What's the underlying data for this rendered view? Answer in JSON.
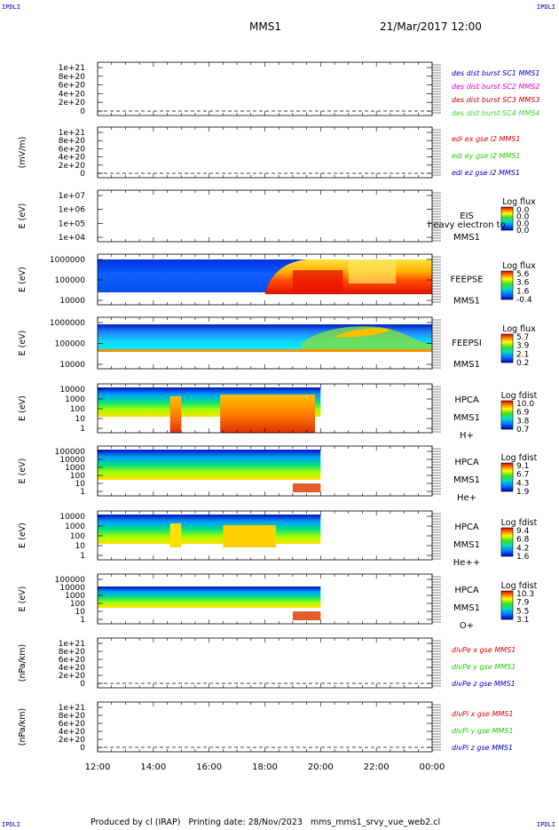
{
  "corner_marks": {
    "tl": "IPDLI",
    "tr": "IPDLI",
    "bl": "IPDLI",
    "br": "IPDLI"
  },
  "header": {
    "title": "MMS1",
    "datetime": "21/Mar/2017 12:00"
  },
  "footer": {
    "text": "Produced by cl (IRAP)   Printing date: 28/Nov/2023   mms_mms1_srvy_vue_web2.cl"
  },
  "colors": {
    "red": "#dd0000",
    "green": "#22cc00",
    "blue": "#0000cc",
    "magenta": "#dd00dd",
    "dark_red": "#cc0000",
    "light_green": "#33dd33"
  },
  "chart_data": {
    "type": "heatmap",
    "x_axis": {
      "ticks": [
        "12:00",
        "14:00",
        "16:00",
        "18:00",
        "20:00",
        "22:00",
        "00:00"
      ],
      "start_hours": 12,
      "end_hours": 24
    },
    "panels": [
      {
        "id": "p1",
        "kind": "line",
        "ylabel": "",
        "yticks": [
          "1e+21",
          "8e+20",
          "6e+20",
          "4e+20",
          "2e+20",
          "0"
        ],
        "legend": [
          {
            "text": "des dist burst SC1 MMS1",
            "color": "#0000cc"
          },
          {
            "text": "des dist burst SC2 MMS2",
            "color": "#dd00dd"
          },
          {
            "text": "des dist burst SC3 MMS3",
            "color": "#cc0000"
          },
          {
            "text": "des dist burst SC4 MMS4",
            "color": "#33dd33"
          }
        ]
      },
      {
        "id": "p2",
        "kind": "line",
        "ylabel": "(mV/m)",
        "yticks": [
          "1e+21",
          "8e+20",
          "6e+20",
          "4e+20",
          "2e+20",
          "0"
        ],
        "legend": [
          {
            "text": "edi ex gse l2 MMS1",
            "color": "#dd0000"
          },
          {
            "text": "edi ey gse l2 MMS1",
            "color": "#22cc00"
          },
          {
            "text": "edi ez gse l2 MMS1",
            "color": "#0000cc"
          }
        ]
      },
      {
        "id": "p3",
        "kind": "spec",
        "ylabel": "E (eV)",
        "yticks": [
          "1e+07",
          "1e+06",
          "1e+05",
          "1e+04"
        ],
        "labels": [
          "EIS",
          "MMS1"
        ],
        "overlay": "heavy electron to",
        "cbar_title": "Log flux",
        "cbar_ticks": [
          "0.0",
          "0.0",
          "0.0",
          "0.0"
        ]
      },
      {
        "id": "p4",
        "kind": "spec",
        "ylabel": "E (eV)",
        "yticks": [
          "1000000",
          "100000",
          "10000"
        ],
        "labels": [
          "FEEPSE",
          "MMS1"
        ],
        "cbar_title": "Log flux",
        "cbar_ticks": [
          "5.6",
          "3.6",
          "1.6",
          "-0.4"
        ]
      },
      {
        "id": "p5",
        "kind": "spec",
        "ylabel": "E (eV)",
        "yticks": [
          "1000000",
          "100000",
          "10000"
        ],
        "labels": [
          "FEEPSI",
          "MMS1"
        ],
        "cbar_title": "Log flux",
        "cbar_ticks": [
          "5.7",
          "3.9",
          "2.1",
          "0.2"
        ]
      },
      {
        "id": "p6",
        "kind": "spec",
        "ylabel": "E (eV)",
        "yticks": [
          "10000",
          "1000",
          "100",
          "10",
          "1"
        ],
        "labels": [
          "HPCA",
          "MMS1",
          "H+"
        ],
        "cbar_title": "Log fdist",
        "cbar_ticks": [
          "10.0",
          "6.9",
          "3.8",
          "0.7"
        ]
      },
      {
        "id": "p7",
        "kind": "spec",
        "ylabel": "E (eV)",
        "yticks": [
          "100000",
          "10000",
          "1000",
          "100",
          "10",
          "1"
        ],
        "labels": [
          "HPCA",
          "MMS1",
          "He+"
        ],
        "cbar_title": "Log fdist",
        "cbar_ticks": [
          "9.1",
          "6.7",
          "4.3",
          "1.9"
        ]
      },
      {
        "id": "p8",
        "kind": "spec",
        "ylabel": "E (eV)",
        "yticks": [
          "10000",
          "1000",
          "100",
          "10",
          "1"
        ],
        "labels": [
          "HPCA",
          "MMS1",
          "He++"
        ],
        "cbar_title": "Log fdist",
        "cbar_ticks": [
          "9.4",
          "6.8",
          "4.2",
          "1.6"
        ]
      },
      {
        "id": "p9",
        "kind": "spec",
        "ylabel": "E (eV)",
        "yticks": [
          "100000",
          "10000",
          "1000",
          "100",
          "10",
          "1"
        ],
        "labels": [
          "HPCA",
          "MMS1",
          "O+"
        ],
        "cbar_title": "Log fdist",
        "cbar_ticks": [
          "10.3",
          "7.9",
          "5.5",
          "3.1"
        ]
      },
      {
        "id": "p10",
        "kind": "line",
        "ylabel": "(nPa/km)",
        "yticks": [
          "1e+21",
          "8e+20",
          "6e+20",
          "4e+20",
          "2e+20",
          "0"
        ],
        "legend": [
          {
            "text": "divPe x gse MMS1",
            "color": "#dd0000"
          },
          {
            "text": "divPe y gse MMS1",
            "color": "#22cc00"
          },
          {
            "text": "divPe z gse MMS1",
            "color": "#0000cc"
          }
        ]
      },
      {
        "id": "p11",
        "kind": "line",
        "ylabel": "(nPa/km)",
        "yticks": [
          "1e+21",
          "8e+20",
          "6e+20",
          "4e+20",
          "2e+20",
          "0"
        ],
        "legend": [
          {
            "text": "divPi x gse MMS1",
            "color": "#dd0000"
          },
          {
            "text": "divPi y gse MMS1",
            "color": "#22cc00"
          },
          {
            "text": "divPi z gse MMS1",
            "color": "#0000cc"
          }
        ]
      }
    ]
  }
}
